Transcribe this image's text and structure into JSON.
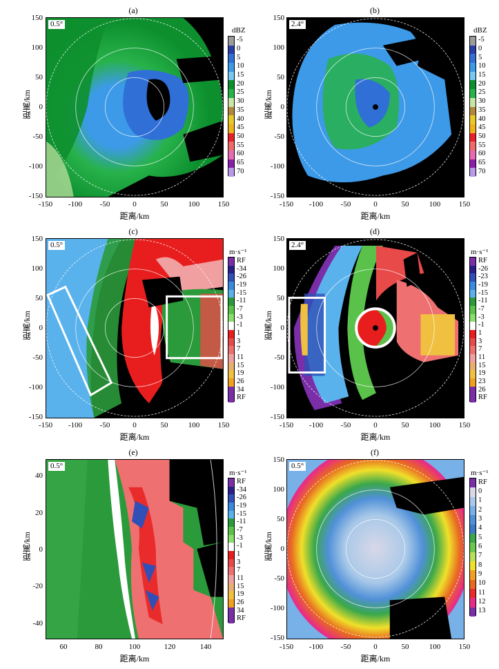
{
  "panels": {
    "a": {
      "title": "(a)",
      "elev": "0.5°",
      "xlabel": "距离/km",
      "ylabel": "距离/km",
      "yticks": [
        "150",
        "100",
        "50",
        "0",
        "-50",
        "-100",
        "-150"
      ],
      "xticks": [
        "-150",
        "-100",
        "-50",
        "0",
        "50",
        "100",
        "150"
      ],
      "unit": "dBZ",
      "cb_labels": [
        "-5",
        "0",
        "5",
        "10",
        "15",
        "20",
        "25",
        "30",
        "35",
        "40",
        "45",
        "50",
        "55",
        "60",
        "65",
        "70"
      ]
    },
    "b": {
      "title": "(b)",
      "elev": "2.4°",
      "xlabel": "距离/km",
      "ylabel": "距离/km",
      "yticks": [
        "150",
        "100",
        "50",
        "0",
        "-50",
        "-100",
        "-150"
      ],
      "xticks": [
        "-150",
        "-100",
        "-50",
        "0",
        "50",
        "100",
        "150"
      ],
      "unit": "dBZ",
      "cb_labels": [
        "-5",
        "0",
        "5",
        "10",
        "15",
        "20",
        "25",
        "30",
        "35",
        "40",
        "45",
        "50",
        "55",
        "60",
        "65",
        "70"
      ]
    },
    "c": {
      "title": "(c)",
      "elev": "0.5°",
      "xlabel": "距离/km",
      "ylabel": "距离/km",
      "yticks": [
        "150",
        "100",
        "50",
        "0",
        "-50",
        "-100",
        "-150"
      ],
      "xticks": [
        "-150",
        "-100",
        "-50",
        "0",
        "50",
        "100",
        "150"
      ],
      "unit": "m·s⁻¹",
      "cb_labels": [
        "RF",
        "-34",
        "-26",
        "-19",
        "-15",
        "-11",
        "-7",
        "-3",
        "-1",
        "1",
        "3",
        "7",
        "11",
        "15",
        "19",
        "26",
        "34",
        "RF"
      ]
    },
    "d": {
      "title": "(d)",
      "elev": "2.4°",
      "xlabel": "距离/km",
      "ylabel": "距离/km",
      "yticks": [
        "150",
        "100",
        "50",
        "0",
        "-50",
        "-100",
        "-150"
      ],
      "xticks": [
        "-150",
        "-100",
        "-50",
        "0",
        "50",
        "100",
        "150"
      ],
      "unit": "m·s⁻¹",
      "cb_labels": [
        "RF",
        "-26",
        "-23",
        "-19",
        "-15",
        "-11",
        "-7",
        "-3",
        "-1",
        "1",
        "3",
        "7",
        "11",
        "15",
        "19",
        "23",
        "26",
        "RF"
      ]
    },
    "e": {
      "title": "(e)",
      "elev": "0.5°",
      "xlabel": "距离/km",
      "ylabel": "距离/km",
      "yticks": [
        "40",
        "20",
        "0",
        "-20",
        "-40"
      ],
      "xticks": [
        "60",
        "80",
        "100",
        "120",
        "140"
      ],
      "unit": "m·s⁻¹",
      "cb_labels": [
        "RF",
        "-34",
        "-26",
        "-19",
        "-15",
        "-11",
        "-7",
        "-3",
        "-1",
        "1",
        "3",
        "7",
        "11",
        "15",
        "19",
        "26",
        "34",
        "RF"
      ]
    },
    "f": {
      "title": "(f)",
      "elev": "0.5°",
      "xlabel": "距离/km",
      "ylabel": "距离/km",
      "yticks": [
        "150",
        "100",
        "50",
        "0",
        "-50",
        "-100",
        "-150"
      ],
      "xticks": [
        "-150",
        "-100",
        "-50",
        "0",
        "50",
        "100",
        "150"
      ],
      "unit": "m·s⁻¹",
      "cb_labels": [
        "RF",
        "0",
        "1",
        "2",
        "3",
        "4",
        "5",
        "6",
        "7",
        "8",
        "9",
        "10",
        "11",
        "12",
        "13"
      ]
    }
  },
  "colors": {
    "dbz": [
      "#9c9c9c",
      "#2a3ea8",
      "#2f6fd6",
      "#3d9ae8",
      "#78c8f0",
      "#0d8f2e",
      "#27b24a",
      "#c9e6a8",
      "#b08a3c",
      "#e8c92a",
      "#f0b21c",
      "#e8202a",
      "#f06a6a",
      "#e86ab2",
      "#8a1ea8",
      "#b89ae8"
    ],
    "vel": [
      "#7a2ea8",
      "#2a1f8a",
      "#3050b8",
      "#3a8ae0",
      "#5ab2ec",
      "#2a9a3a",
      "#5ac24a",
      "#8ade6a",
      "#ffffff",
      "#e81e1e",
      "#e84a4a",
      "#ee7070",
      "#f0a0a0",
      "#e8b070",
      "#f0c040",
      "#f2a020",
      "#7a2ea8"
    ],
    "sw": [
      "#7a2ea8",
      "#d8d8e8",
      "#a8c8e8",
      "#78b0e8",
      "#5090d8",
      "#3a7ac8",
      "#3aa84a",
      "#6ac84a",
      "#b8e05a",
      "#f0e02a",
      "#f0a020",
      "#e86a20",
      "#e82a2a",
      "#e82a8a"
    ]
  }
}
